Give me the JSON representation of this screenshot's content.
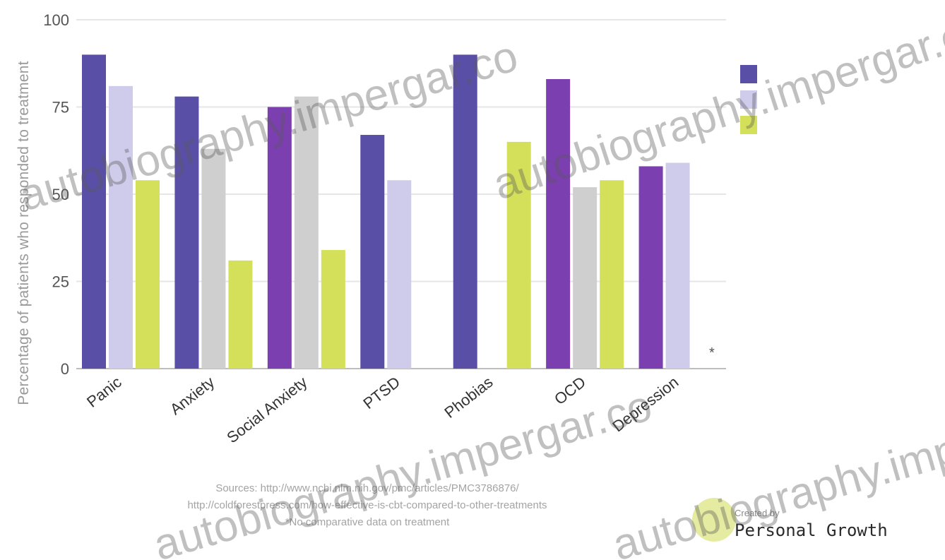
{
  "chart_data": {
    "type": "bar",
    "title": "",
    "xlabel": "",
    "ylabel": "Percentage of patients who responded to treatment",
    "categories": [
      "Panic",
      "Anxiety",
      "Social Anxiety",
      "PTSD",
      "Phobias",
      "OCD",
      "Depression"
    ],
    "ylim": [
      0,
      100
    ],
    "yticks": [
      "0",
      "25",
      "50",
      "75",
      "100"
    ],
    "grid": true,
    "legend_position": "top-right",
    "series": [
      {
        "values": [
          90,
          78,
          75,
          67,
          90,
          83,
          58
        ]
      },
      {
        "values": [
          81,
          63,
          78,
          54,
          null,
          52,
          59
        ]
      },
      {
        "values": [
          54,
          31,
          34,
          null,
          65,
          54,
          null
        ]
      }
    ],
    "colors": {
      "series_dark": "#5a4fa6",
      "series_purple": "#7b3fb0",
      "series_light": "#cfcbea",
      "series_gray": "#cfcfcf",
      "series_yellow": "#d4e05a",
      "grid": "#e6e6e6",
      "axis_text": "#555555"
    },
    "legend": [
      {
        "icon": "legend-swatch-dark"
      },
      {
        "icon": "legend-swatch-purple"
      },
      {
        "icon": "legend-swatch-yellow"
      }
    ],
    "note_marker": "*"
  },
  "sources": {
    "line1": "Sources: http://www.ncbi.nlm.nih.gov/pmc/articles/PMC3786876/",
    "line2": "http://coldforestpress.com/how-effective-is-cbt-compared-to-other-treatments",
    "line3": "*No comparative data on treatment"
  },
  "watermark": {
    "text1": "autobiography.impergar.co",
    "text2": "autobiography.impergar.co",
    "text3": "autobiography.impergar.co",
    "text4": "autobiography.impergar.co"
  },
  "credit": {
    "line": "Created by",
    "brand": "Personal Growth"
  }
}
